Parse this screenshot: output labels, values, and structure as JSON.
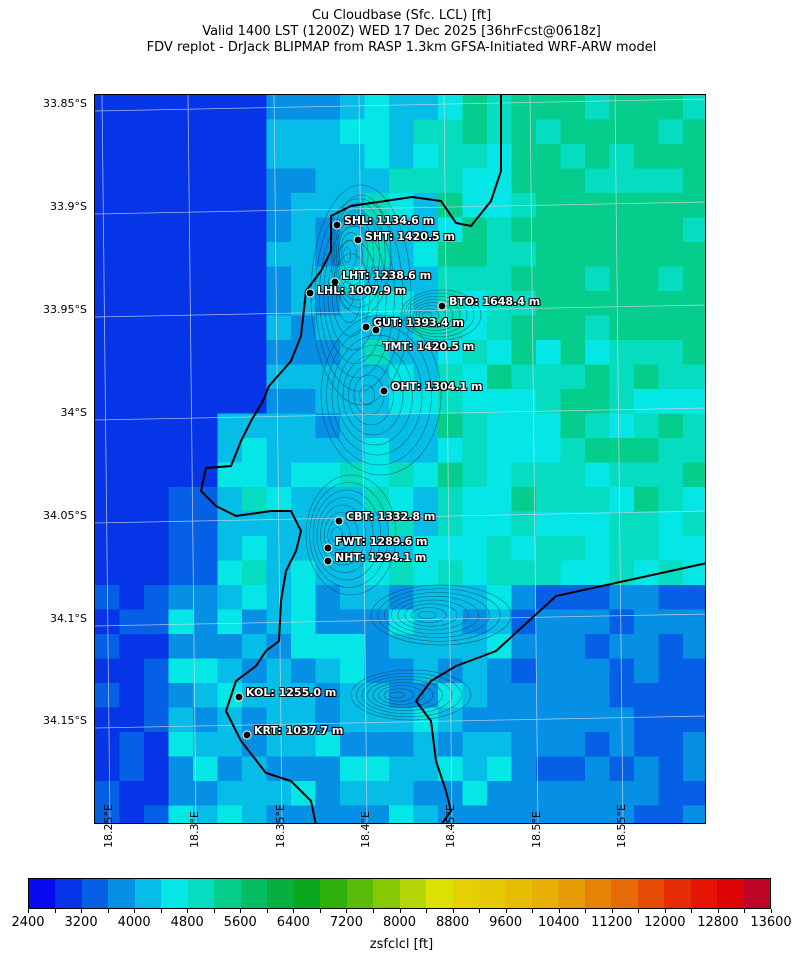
{
  "title": {
    "line1": "Cu Cloudbase (Sfc. LCL) [ft]",
    "line2": "Valid 1400 LST (1200Z) WED 17 Dec 2025 [36hrFcst@0618z]",
    "line3": "FDV replot - DrJack BLIPMAP from RASP 1.3km GFSA-Initiated WRF-ARW model"
  },
  "axes": {
    "lat_labels": [
      "33.85°S",
      "33.9°S",
      "33.95°S",
      "34°S",
      "34.05°S",
      "34.1°S",
      "34.15°S"
    ],
    "lon_labels": [
      "18.25°E",
      "18.3°E",
      "18.35°E",
      "18.4°E",
      "18.45°E",
      "18.5°E",
      "18.55°E"
    ]
  },
  "stations": [
    {
      "label": "SHL: 1134.6 m"
    },
    {
      "label": "SHT: 1420.5 m"
    },
    {
      "label": "LHT: 1238.6 m"
    },
    {
      "label": "LHL: 1007.9 m"
    },
    {
      "label": "BTO: 1648.4 m"
    },
    {
      "label": "GUT: 1393.4 m"
    },
    {
      "label": "TMT: 1420.5 m"
    },
    {
      "label": "OHT: 1304.1 m"
    },
    {
      "label": "CBT: 1332.8 m"
    },
    {
      "label": "FWT: 1289.6 m"
    },
    {
      "label": "NHT: 1294.1 m"
    },
    {
      "label": "KOL: 1255.0 m"
    },
    {
      "label": "KRT: 1037.7 m"
    }
  ],
  "colorbar": {
    "label": "zsfclcl [ft]",
    "min": 2400,
    "max": 13600,
    "step": 400,
    "tick_labels": [
      "2400",
      "3200",
      "4000",
      "4800",
      "5600",
      "6400",
      "7200",
      "8000",
      "8800",
      "9600",
      "10400",
      "11200",
      "12000",
      "12800",
      "13600"
    ],
    "colors": [
      "#0a0af0",
      "#0535e6",
      "#0560e6",
      "#0590e6",
      "#05bde6",
      "#05e6e6",
      "#05dcc0",
      "#05cd8c",
      "#05be64",
      "#05b040",
      "#0aa81e",
      "#2db00a",
      "#5abc0a",
      "#87c805",
      "#b4d705",
      "#dce005",
      "#e6d005",
      "#e6c805",
      "#e6bc05",
      "#e6b005",
      "#e69c05",
      "#e68205",
      "#e66a05",
      "#e64c05",
      "#e62d05",
      "#e61405",
      "#dc0505",
      "#be0528"
    ]
  }
}
